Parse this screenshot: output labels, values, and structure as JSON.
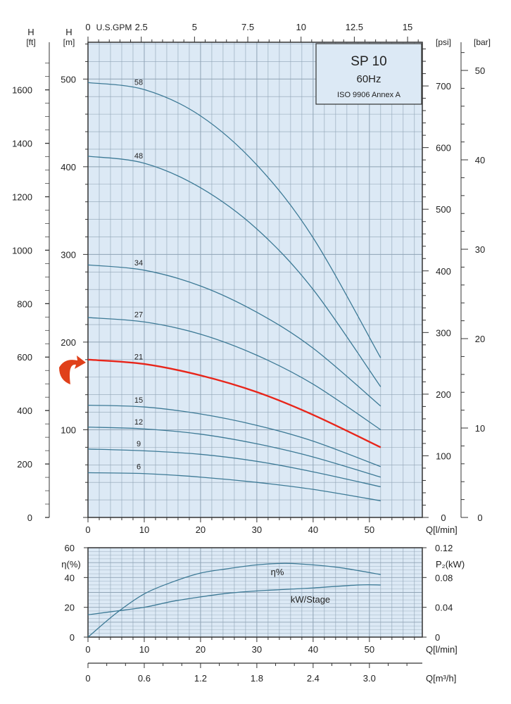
{
  "chart_data": [
    {
      "type": "line",
      "title": "SP 10",
      "subtitle": "60Hz",
      "annotation": "ISO 9906 Annex A",
      "xlabel": "Q[l/min]",
      "ylabel_left_ft": "H\n[ft]",
      "ylabel_left_m": "H\n[m]",
      "ylabel_right_psi": "[psi]",
      "ylabel_right_bar": "[bar]",
      "top_axis_label": "U.S.GPM",
      "xlim": [
        0,
        59.4
      ],
      "ylim": [
        0,
        542
      ],
      "x_ticks": [
        0,
        10,
        20,
        30,
        40,
        50
      ],
      "gpm_ticks": [
        "0",
        "2.5",
        "5",
        "7.5",
        "10",
        "12.5",
        "15"
      ],
      "m_ticks": [
        100,
        200,
        300,
        400,
        500
      ],
      "ft_ticks": [
        0,
        200,
        400,
        600,
        800,
        1000,
        1200,
        1400,
        1600
      ],
      "psi_ticks": [
        0,
        100,
        200,
        300,
        400,
        500,
        600,
        700
      ],
      "bar_ticks": [
        0,
        10,
        20,
        30,
        40,
        50
      ],
      "grid": true,
      "x": [
        0,
        10,
        20,
        30,
        40,
        52
      ],
      "series": [
        {
          "name": "58",
          "values": [
            496,
            488,
            458,
            402,
            319,
            182
          ]
        },
        {
          "name": "48",
          "values": [
            412,
            404,
            376,
            329,
            260,
            149
          ]
        },
        {
          "name": "34",
          "values": [
            288,
            282,
            264,
            234,
            193,
            127
          ]
        },
        {
          "name": "27",
          "values": [
            228,
            223,
            209,
            185,
            152,
            100
          ]
        },
        {
          "name": "21",
          "values": [
            180,
            175,
            162,
            143,
            117,
            80
          ],
          "highlight": true
        },
        {
          "name": "15",
          "values": [
            128,
            126,
            118,
            105,
            87,
            58
          ]
        },
        {
          "name": "12",
          "values": [
            103,
            101,
            95,
            84,
            69,
            46
          ]
        },
        {
          "name": "9",
          "values": [
            78,
            76,
            72,
            64,
            52,
            35
          ]
        },
        {
          "name": "6",
          "values": [
            51,
            50,
            46,
            40,
            32,
            19
          ]
        }
      ],
      "colors": {
        "curve": "#3d7a96",
        "highlight": "#e8251a",
        "grid": "#8fa3b5",
        "plot_bg": "#dce9f5",
        "arrow": "#e0401a"
      }
    },
    {
      "type": "line",
      "xlabel": "Q[l/min]",
      "ylabel_left": "η(%)",
      "ylabel_right": "P₂(kW)",
      "x2label": "Q[m³/h]",
      "xlim": [
        0,
        59.4
      ],
      "ylim_left": [
        0,
        60
      ],
      "ylim_right": [
        0,
        0.12
      ],
      "x_ticks": [
        0,
        10,
        20,
        30,
        40,
        50
      ],
      "left_ticks": [
        0,
        20,
        40,
        60
      ],
      "right_ticks": [
        "0",
        "0.04",
        "0.08",
        "0.12"
      ],
      "m3h_ticks": [
        "0",
        "0.6",
        "1.2",
        "1.8",
        "2.4",
        "3.0"
      ],
      "series": [
        {
          "name": "η%",
          "axis": "left",
          "x": [
            0,
            5,
            10,
            15,
            20,
            25,
            30,
            35,
            40,
            45,
            52
          ],
          "values": [
            0,
            16,
            29,
            37,
            43,
            46,
            48.5,
            49.5,
            48.5,
            46.5,
            42
          ]
        },
        {
          "name": "kW/Stage",
          "axis": "right",
          "x": [
            0,
            5,
            10,
            15,
            20,
            25,
            30,
            35,
            40,
            48,
            52
          ],
          "values": [
            0.03,
            0.035,
            0.04,
            0.048,
            0.054,
            0.059,
            0.062,
            0.064,
            0.066,
            0.07,
            0.07
          ]
        }
      ]
    }
  ]
}
